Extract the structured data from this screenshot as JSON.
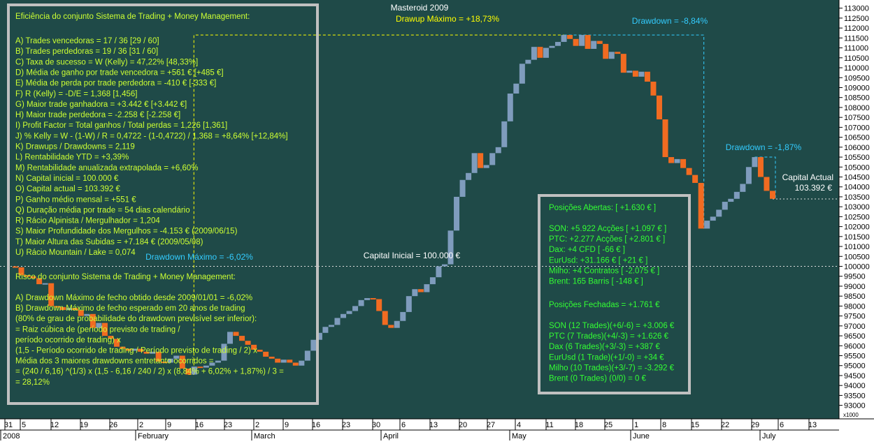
{
  "header": {
    "title": "Masteroid 2009",
    "drawup_label": "Drawup Máximo = +18,73%",
    "drawdown_label": "Drawdown = -8,84%",
    "drawdown2_label": "Drawdown = -1,87%",
    "drawdown_max_label": "Drawdown Máximo = -6,02%",
    "capital_inicial_label": "Capital Inicial = 100.000 €",
    "capital_actual_title": "Capital Actual",
    "capital_actual_value": "103.392 €"
  },
  "efficiency_panel": {
    "title": "Eficiência do conjunto Sistema de Trading + Money Management:",
    "lines": [
      "A) Trades vencedoras = 17 / 36   [29 / 60]",
      "B) Trades perdedoras = 19 / 36   [31 / 60]",
      "C) Taxa de sucesso = W (Kelly) = 47,22%  [48,33%]",
      "D) Média de ganho por trade vencedora = +561 €   [+485 €]",
      "E) Média de perda por trade perdedora = -410 €   [-333 €]",
      "F) R (Kelly) = -D/E = 1,368   [1,456]",
      "G) Maior trade ganhadora = +3.442 €   [+3.442 €]",
      "H) Maior trade perdedora = -2.258 €   [-2.258 €]",
      "I) Profit Factor = Total ganhos / Total perdas = 1,226   [1,361]",
      "J) % Kelly = W - (1-W) / R = 0,4722 - (1-0,4722) / 1,368 = +8,64%  [+12,84%]",
      "K) Drawups / Drawdowns = 2,119",
      "L) Rentabilidade YTD = +3,39%",
      "M) Rentabilidade anualizada extrapolada = +6,60%",
      "N) Capital inicial = 100.000 €",
      "O) Capital actual = 103.392 €",
      "P) Ganho médio mensal = +551 €",
      "Q) Duração média por trade = 54 dias calendário",
      "R) Rácio Alpinista / Mergulhador = 1,204",
      "S) Maior Profundidade dos Mergulhos = -4.153 € (2009/06/15)",
      "T) Maior Altura das Subidas = +7.184 € (2009/05/08)",
      "U) Rácio Mountain / Lake = 0,074"
    ],
    "risk_title": "Risco do conjunto Sistema de Trading + Money Management:",
    "risk_lines": [
      "A) Drawdown Máximo de fecho obtido desde 2009/01/01 = -6,02%",
      "B) Drawdown Máximo de fecho esperado em 20 anos de trading",
      "(80% de grau de probabilidade do drawdown previsível ser inferior):",
      "= Raiz cúbica de (período previsto de trading /",
      "período ocorrido de trading) x",
      "(1,5 - Período ocorrido de trading / Período previsto de trading / 2) x",
      "Média dos 3 maiores drawdowns entretanto ocorridos =",
      "= (240 / 6,16) ^(1/3) x (1,5 - 6,16 / 240 / 2) x (8,84% + 6,02% + 1,87%) / 3 =",
      "= 28,12%"
    ]
  },
  "positions_panel": {
    "open_title": "Posições Abertas: [ +1.630 € ]",
    "open_lines": [
      "SON: +5.922 Acções [ +1.097 € ]",
      "PTC: +2.277 Acções [ +2.801 € ]",
      "Dax: +4 CFD [ -66 € ]",
      "EurUsd: +31.166 € [ +21 € ]",
      "Milho: +4 Contratos [ -2.075 € ]",
      "Brent: 165 Barris [ -148 € ]"
    ],
    "closed_title": "Posições Fechadas = +1.761 €",
    "closed_lines": [
      "SON (12 Trades)(+6/-6) = +3.006 €",
      "PTC (7 Trades)(+4/-3) = +1.626 €",
      "Dax (6 Trades)(+3/-3) = +387 €",
      "EurUsd (1 Trade)(+1/-0) = +34 €",
      "Milho (10 Trades)(+3/-7) = -3.292 €",
      "Brent (0 Trades) (0/0) = 0 €"
    ]
  },
  "colors": {
    "background": "#1f4a48",
    "up": "#7f9cbd",
    "down": "#f16b21",
    "panel_text": "#ccff33",
    "green_text": "#33ff33",
    "drawup": "#ffff00",
    "drawdown": "#33ccff",
    "border": "#c0c0c0"
  },
  "chart_data": {
    "type": "candlestick",
    "title": "Masteroid 2009",
    "y_unit": "€",
    "ylim": [
      92600,
      113200
    ],
    "y_ticks": [
      93000,
      93500,
      94000,
      94500,
      95000,
      95500,
      96000,
      96500,
      97000,
      97500,
      98000,
      98500,
      99000,
      99500,
      100000,
      100500,
      101000,
      101500,
      102000,
      102500,
      103000,
      103500,
      104000,
      104500,
      105000,
      105500,
      106000,
      106500,
      107000,
      107500,
      108000,
      108500,
      109000,
      109500,
      110000,
      110500,
      111000,
      111500,
      112000,
      112500,
      113000
    ],
    "y_scale_note": "x1000",
    "x_day_ticks": [
      "31",
      "5",
      "12",
      "19",
      "26",
      "2",
      "9",
      "16",
      "23",
      "2",
      "9",
      "16",
      "23",
      "30",
      "6",
      "13",
      "20",
      "27",
      "4",
      "11",
      "18",
      "25",
      "1",
      "8",
      "15",
      "22",
      "29",
      "6",
      "13"
    ],
    "x_month_labels": [
      "2008",
      "February",
      "March",
      "April",
      "May",
      "June",
      "July"
    ],
    "reference_lines": {
      "capital_inicial": 100000,
      "capital_actual": 103392
    },
    "series": [
      {
        "open": [
          100000,
          99950,
          99550,
          99500,
          99400,
          99100,
          99150,
          98000,
          97950,
          97800,
          97900,
          97800,
          97500,
          97600,
          96900,
          97150,
          96500,
          96350,
          95950,
          95850,
          95750,
          95850,
          95700,
          95600,
          95700,
          95200,
          95150,
          95350,
          95500,
          94850,
          94550,
          94950,
          94900,
          95000,
          95150,
          95250,
          96100,
          96700,
          96500,
          96250,
          96050,
          95800,
          95700,
          95450,
          95350,
          95150,
          95300,
          95150,
          95000,
          95250,
          95750,
          96300,
          96650,
          96950,
          97050,
          97400,
          97600,
          97750,
          98000,
          98300,
          98400,
          98350,
          97750,
          97050,
          96900,
          97250,
          97700,
          98500,
          98850,
          98700,
          99100,
          99450,
          100000,
          100100,
          101800,
          103500,
          104350,
          104700,
          105700,
          104950,
          105100,
          105700,
          106000,
          107300,
          108700,
          109200,
          110200,
          110400,
          111050,
          110500,
          111000,
          111100,
          111300,
          111650,
          111450,
          111100,
          111650,
          110950,
          111350,
          111200,
          110450,
          110800,
          110700,
          109750,
          109850,
          109550,
          109800,
          109300,
          108600,
          107400,
          105500,
          105200,
          105400,
          104950,
          104600,
          104200,
          101900,
          102300,
          102500,
          102850,
          103250,
          103400,
          103750,
          104150,
          105000,
          105500,
          104500,
          103800
        ],
        "close": [
          99950,
          99550,
          99500,
          99400,
          99100,
          99150,
          98000,
          97950,
          97800,
          97900,
          97800,
          97500,
          97600,
          96900,
          97150,
          96500,
          96350,
          95950,
          95850,
          95750,
          95850,
          95700,
          95600,
          95700,
          95200,
          95150,
          95350,
          95500,
          94850,
          94550,
          94950,
          94900,
          95000,
          95150,
          95250,
          96100,
          96700,
          96500,
          96250,
          96050,
          95800,
          95700,
          95450,
          95350,
          95150,
          95300,
          95150,
          95000,
          95250,
          95750,
          96300,
          96650,
          96950,
          97050,
          97400,
          97600,
          97750,
          98000,
          98300,
          98400,
          98350,
          97750,
          97050,
          96900,
          97250,
          97700,
          98500,
          98850,
          98700,
          99100,
          99450,
          100000,
          100100,
          101800,
          103500,
          104350,
          104700,
          105700,
          104950,
          105100,
          105700,
          106000,
          107300,
          108700,
          109200,
          110200,
          110400,
          111050,
          110500,
          111000,
          111100,
          111300,
          111650,
          111450,
          111100,
          111650,
          110950,
          111350,
          111200,
          110450,
          110800,
          110700,
          109750,
          109850,
          109550,
          109800,
          109300,
          108600,
          107400,
          105500,
          105200,
          105400,
          104950,
          104600,
          104200,
          101900,
          102300,
          102500,
          102850,
          103250,
          103400,
          103750,
          104150,
          105000,
          105500,
          104500,
          103800,
          103400
        ]
      }
    ]
  }
}
